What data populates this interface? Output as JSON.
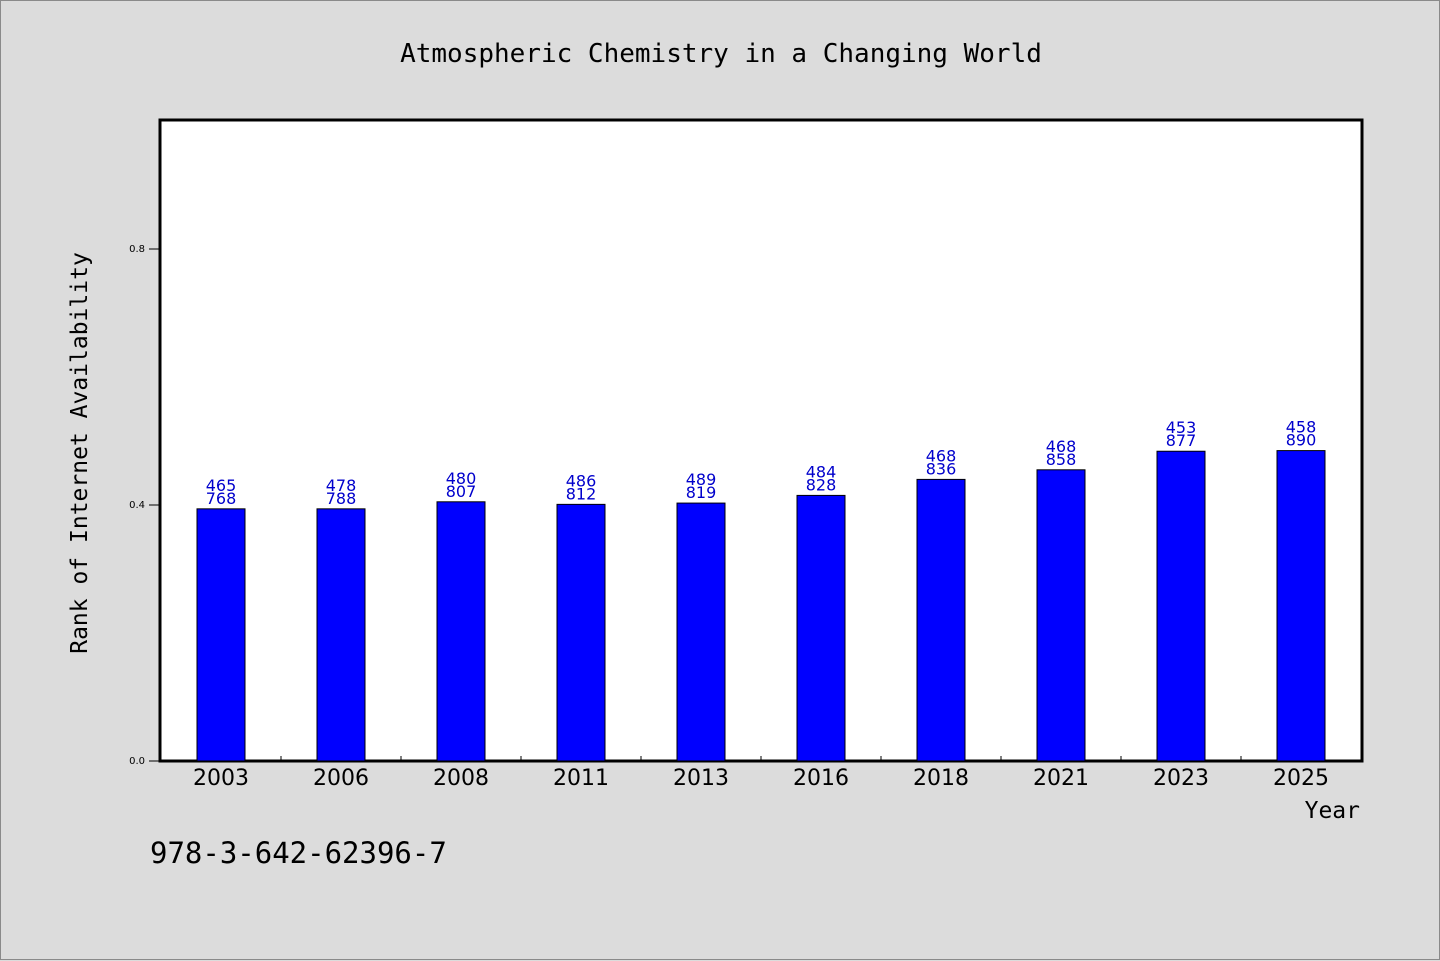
{
  "chart_data": {
    "type": "bar",
    "title": "Atmospheric Chemistry in a Changing World",
    "xlabel": "Year",
    "ylabel": "Rank of Internet Availability",
    "categories": [
      "2003",
      "2006",
      "2008",
      "2011",
      "2013",
      "2016",
      "2018",
      "2021",
      "2023",
      "2025"
    ],
    "values": [
      0.394,
      0.394,
      0.405,
      0.401,
      0.403,
      0.415,
      0.44,
      0.455,
      0.484,
      0.485
    ],
    "label_top": [
      "465",
      "478",
      "480",
      "486",
      "489",
      "484",
      "468",
      "468",
      "453",
      "458"
    ],
    "label_bottom": [
      "768",
      "788",
      "807",
      "812",
      "819",
      "828",
      "836",
      "858",
      "877",
      "890"
    ],
    "ylim": [
      0,
      1.0
    ],
    "yticks": [
      0.0,
      0.4,
      0.8
    ],
    "ytick_labels": [
      "0.0",
      "0.4",
      "0.8"
    ],
    "grid": false,
    "bar_color": "#0000ff",
    "label_color": "#0000cc"
  },
  "footer_code": "978-3-642-62396-7"
}
